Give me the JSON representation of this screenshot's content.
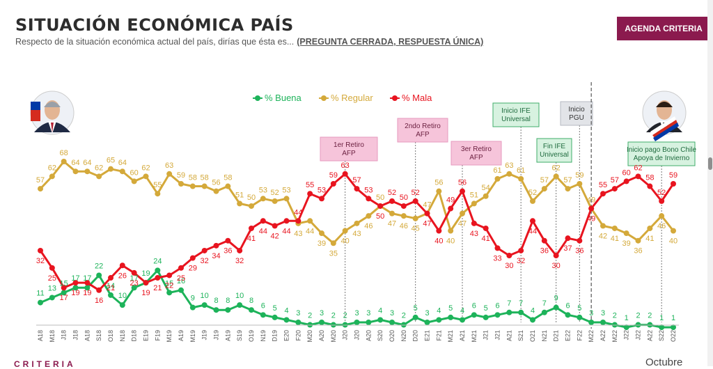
{
  "header": {
    "title": "SITUACIÓN ECONÓMICA PAÍS",
    "subtitle": "Respecto de la situación económica actual del país, dirías que ésta es...",
    "subtitle_paren": "(PREGUNTA CERRADA, RESPUESTA ÚNICA)",
    "badge": "AGENDA CRITERIA"
  },
  "footer": {
    "brand": "CRITERIA",
    "month_label": "Octubre"
  },
  "colors": {
    "buena": "#1db35a",
    "regular": "#d4a93a",
    "mala": "#e8141f",
    "brand": "#8b1a4e"
  },
  "chart_data": {
    "type": "line",
    "categories": [
      "A18",
      "M18",
      "J18",
      "J18",
      "A18",
      "S18",
      "O18",
      "N18",
      "D18",
      "E19",
      "F19",
      "M19",
      "A19",
      "M19",
      "J19",
      "J19",
      "A19",
      "S19",
      "O19",
      "N19",
      "D19",
      "E20",
      "F20",
      "M20",
      "A20",
      "M20",
      "J20",
      "J20",
      "A20",
      "S20",
      "O20",
      "N20",
      "D20",
      "E21",
      "F21",
      "M21",
      "A21",
      "M21",
      "J21",
      "J21",
      "A21",
      "S21",
      "O21",
      "N21",
      "D21",
      "E22",
      "F22",
      "M22",
      "A22",
      "M22",
      "J22",
      "J22",
      "A22",
      "S22",
      "O22"
    ],
    "series": [
      {
        "name": "% Buena",
        "color": "#1db35a",
        "values": [
          11,
          13,
          15,
          17,
          17,
          22,
          14,
          10,
          17,
          19,
          24,
          15,
          16,
          9,
          10,
          8,
          8,
          10,
          8,
          6,
          5,
          4,
          3,
          2,
          3,
          2,
          2,
          3,
          3,
          4,
          3,
          2,
          5,
          3,
          4,
          5,
          4,
          6,
          5,
          6,
          7,
          7,
          4,
          7,
          9,
          6,
          5,
          3,
          3,
          2,
          1,
          2,
          2,
          1,
          1
        ]
      },
      {
        "name": "% Regular",
        "color": "#d4a93a",
        "values": [
          57,
          62,
          68,
          64,
          64,
          62,
          65,
          64,
          60,
          62,
          55,
          63,
          59,
          58,
          58,
          56,
          58,
          51,
          50,
          53,
          52,
          53,
          43,
          44,
          39,
          35,
          40,
          43,
          46,
          50,
          47,
          46,
          45,
          47,
          56,
          40,
          47,
          51,
          54,
          61,
          63,
          61,
          52,
          57,
          62,
          57,
          59,
          49,
          42,
          41,
          39,
          36,
          41,
          46,
          40
        ]
      },
      {
        "name": "% Mala",
        "color": "#e8141f",
        "values": [
          32,
          25,
          17,
          19,
          19,
          16,
          21,
          26,
          23,
          19,
          21,
          22,
          25,
          29,
          32,
          34,
          36,
          32,
          41,
          44,
          42,
          44,
          44,
          55,
          53,
          59,
          63,
          57,
          53,
          50,
          52,
          50,
          52,
          47,
          40,
          49,
          56,
          43,
          41,
          33,
          30,
          32,
          44,
          36,
          30,
          37,
          36,
          49,
          55,
          57,
          60,
          62,
          58,
          52,
          59
        ]
      }
    ],
    "legend": [
      "% Buena",
      "% Regular",
      "% Mala"
    ],
    "legend_position": "top-center",
    "ylim": [
      0,
      75
    ],
    "grid": false,
    "events": [
      {
        "label": "1er Retiro AFP",
        "category_index": 26,
        "kind": "pink"
      },
      {
        "label": "2ndo Retiro AFP",
        "category_index": 32,
        "kind": "pink"
      },
      {
        "label": "3er Retiro AFP",
        "category_index": 36,
        "kind": "pink"
      },
      {
        "label": "Inicio IFE Universal",
        "category_index": 41,
        "kind": "green"
      },
      {
        "label": "Fin IFE Universal",
        "category_index": 44,
        "kind": "green"
      },
      {
        "label": "Inicio PGU",
        "category_index": 46,
        "kind": "grey"
      },
      {
        "label": "Inicio pago Bono Chile Apoya de Invierno",
        "category_index": 53,
        "kind": "green"
      }
    ],
    "government_change_index": 47
  }
}
